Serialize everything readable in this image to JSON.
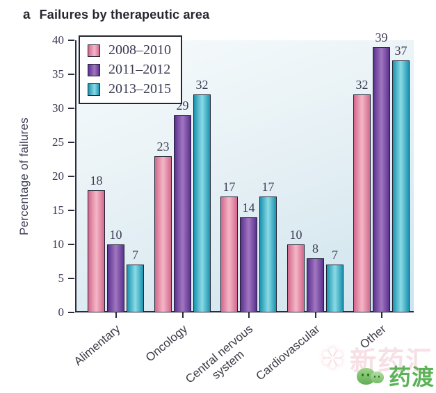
{
  "page": {
    "title_prefix": "a",
    "title": "Failures by therapeutic area"
  },
  "chart_data": {
    "type": "bar",
    "title": "Failures by therapeutic area",
    "xlabel": "",
    "ylabel": "Percentage of failures",
    "ylim": [
      0,
      40
    ],
    "yticks": [
      0,
      5,
      10,
      15,
      20,
      25,
      30,
      35,
      40
    ],
    "grid": false,
    "legend_position": "top-left",
    "categories": [
      "Alimentary",
      "Oncology",
      "Central nervous\nsystem",
      "Cardiovascular",
      "Other"
    ],
    "series": [
      {
        "name": "2008–2010",
        "values": [
          18,
          23,
          17,
          10,
          32
        ],
        "color_edge": "#d2688c",
        "color_mid": "#f5b7c7"
      },
      {
        "name": "2011–2012",
        "values": [
          10,
          29,
          14,
          8,
          39
        ],
        "color_edge": "#5c3190",
        "color_mid": "#a176c0"
      },
      {
        "name": "2013–2015",
        "values": [
          7,
          32,
          17,
          7,
          37
        ],
        "color_edge": "#1b93af",
        "color_mid": "#8adbe6"
      }
    ]
  },
  "watermark": {
    "faint_text": "新药汇",
    "clover_glyph": "✽",
    "green_text": "药渡"
  },
  "colors": {
    "axis": "#2b2b3e",
    "text": "#3c3c55",
    "bar_border": "#1f2133",
    "plot_bg_top": "#f7fbfc",
    "plot_bg_bottom": "#cfe3ed",
    "legend_border": "#26262e",
    "watermark_green": "#5cb357",
    "watermark_pink": "#ecb2bd"
  }
}
